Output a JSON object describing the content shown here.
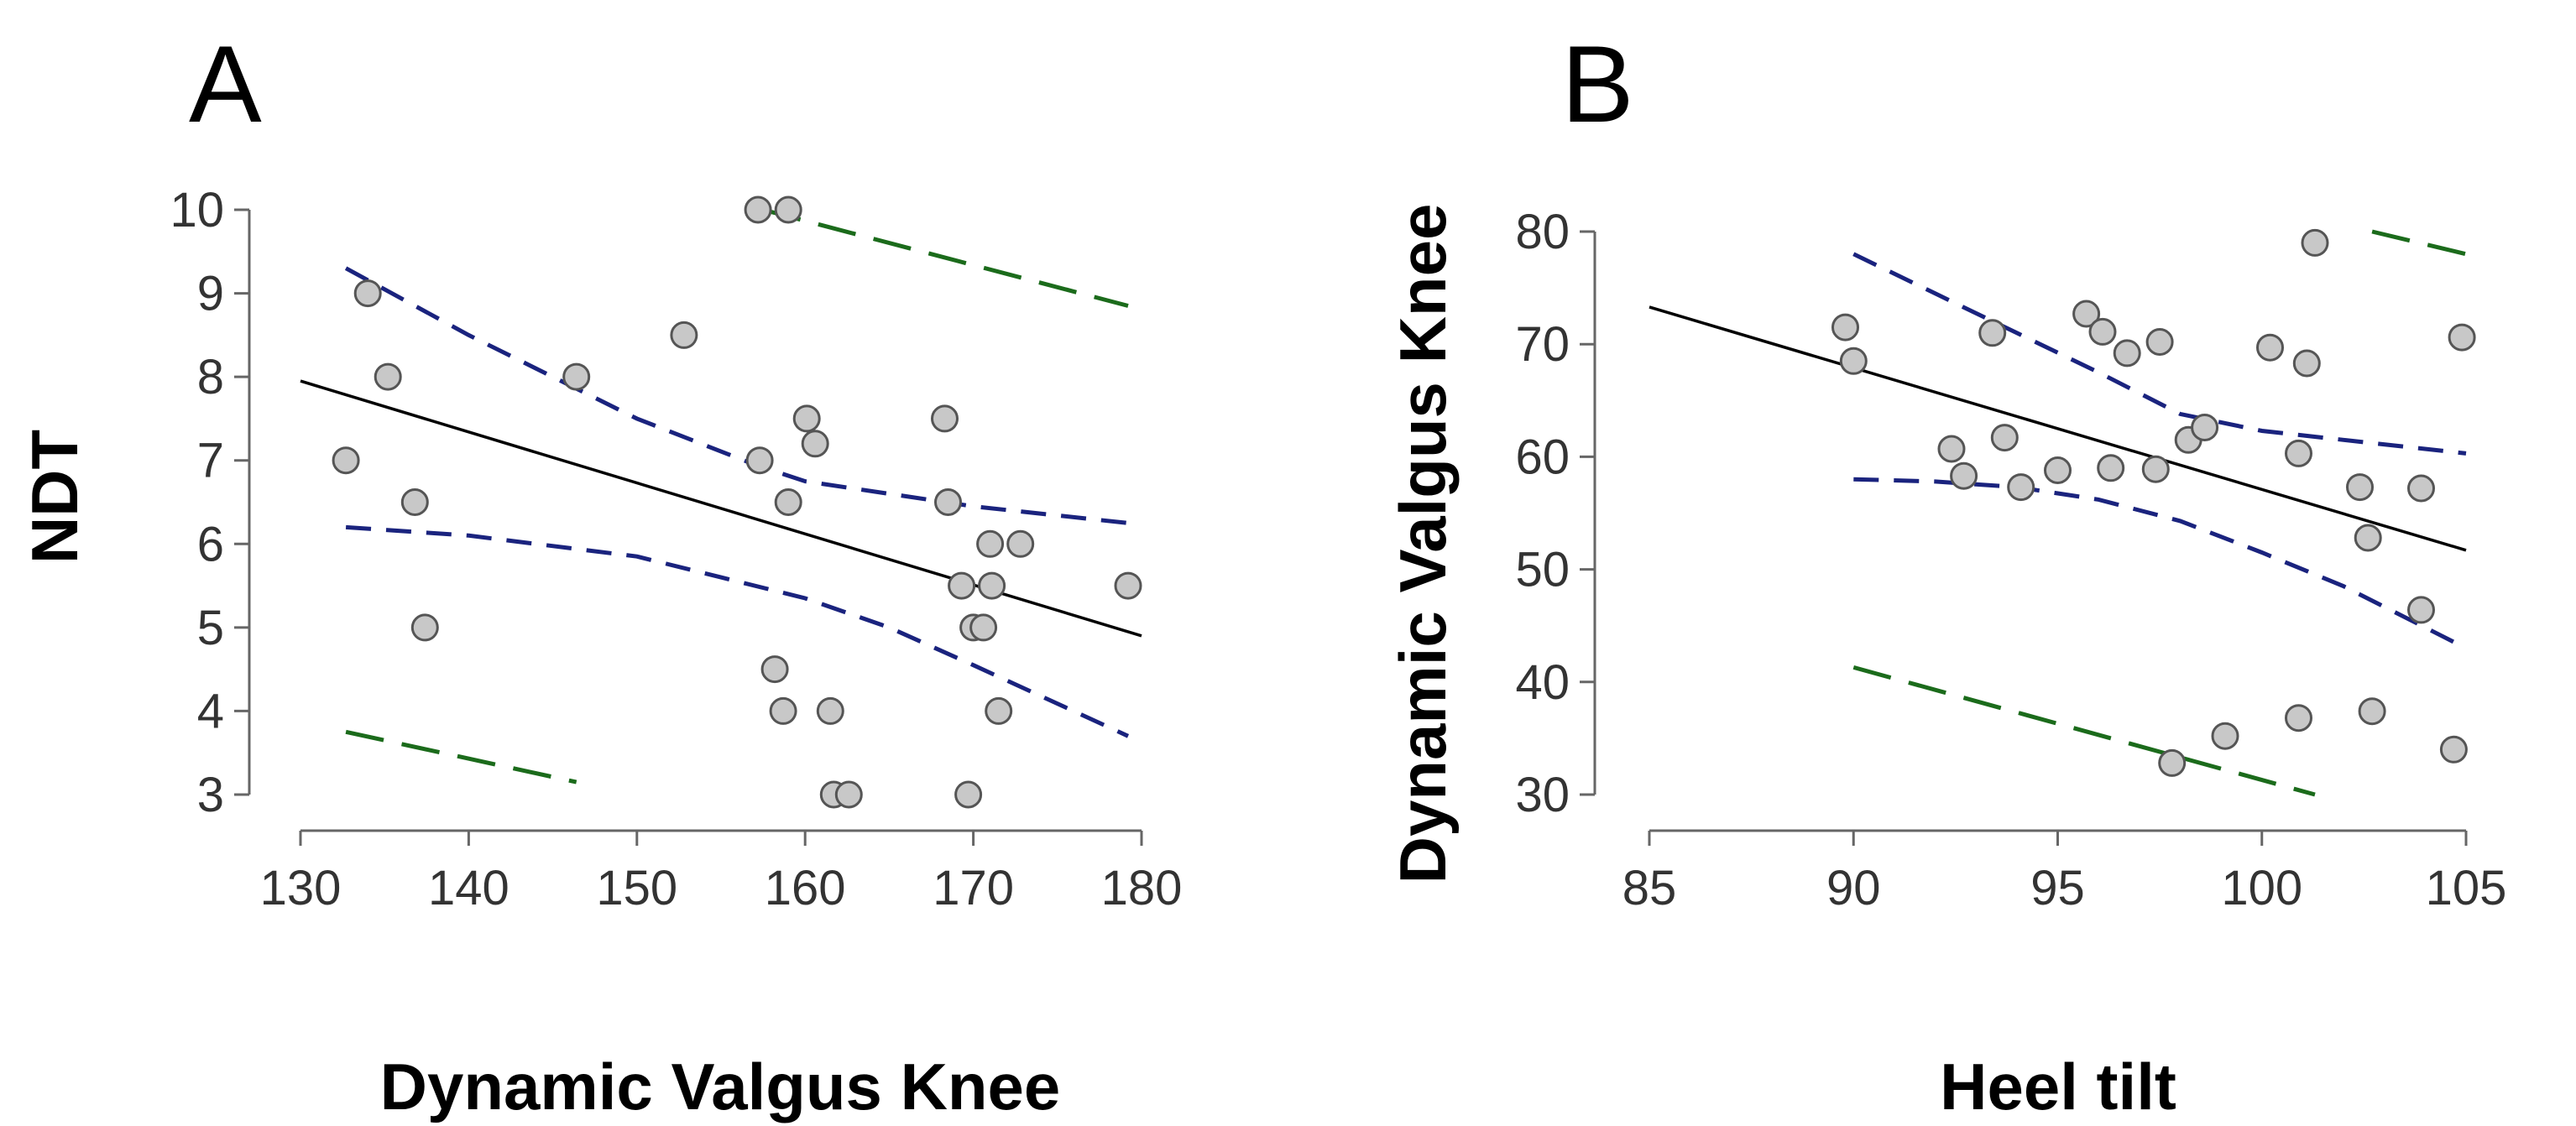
{
  "chart_data": [
    {
      "id": "A",
      "type": "scatter",
      "panel_label": "A",
      "xlabel": "Dynamic Valgus Knee",
      "ylabel": "NDT",
      "xlim": [
        130,
        180
      ],
      "ylim": [
        3,
        10
      ],
      "xticks": [
        130,
        140,
        150,
        160,
        170,
        180
      ],
      "yticks": [
        3,
        4,
        5,
        6,
        7,
        8,
        9,
        10
      ],
      "grid": false,
      "colors": {
        "points": "#c8c8c8",
        "fit": "#000000",
        "confidence": "#1a237e",
        "prediction": "#1b6b1b"
      },
      "points": [
        [
          132.7,
          7
        ],
        [
          134,
          9
        ],
        [
          135.2,
          8
        ],
        [
          136.8,
          6.5
        ],
        [
          137.4,
          5
        ],
        [
          146.4,
          8
        ],
        [
          152.8,
          8.5
        ],
        [
          157.2,
          10
        ],
        [
          157.3,
          7
        ],
        [
          158.2,
          4.5
        ],
        [
          158.7,
          4
        ],
        [
          159,
          10
        ],
        [
          159,
          6.5
        ],
        [
          160.1,
          7.5
        ],
        [
          160.6,
          7.2
        ],
        [
          161.5,
          4
        ],
        [
          161.7,
          3
        ],
        [
          162.6,
          3
        ],
        [
          168.3,
          7.5
        ],
        [
          168.5,
          6.5
        ],
        [
          169.3,
          5.5
        ],
        [
          169.7,
          3
        ],
        [
          170,
          5
        ],
        [
          170.6,
          5
        ],
        [
          171,
          6
        ],
        [
          171.1,
          5.5
        ],
        [
          171.5,
          4
        ],
        [
          172.8,
          6
        ],
        [
          179.2,
          5.5
        ]
      ],
      "fit": [
        [
          130,
          7.95
        ],
        [
          180,
          4.9
        ]
      ],
      "confidence_upper": [
        [
          132.7,
          9.3
        ],
        [
          140,
          8.5
        ],
        [
          150,
          7.5
        ],
        [
          157,
          6.95
        ],
        [
          160,
          6.75
        ],
        [
          165,
          6.6
        ],
        [
          170,
          6.45
        ],
        [
          179.2,
          6.25
        ]
      ],
      "confidence_lower": [
        [
          132.7,
          6.2
        ],
        [
          140,
          6.1
        ],
        [
          150,
          5.85
        ],
        [
          155,
          5.6
        ],
        [
          160,
          5.35
        ],
        [
          165,
          5.0
        ],
        [
          170,
          4.55
        ],
        [
          179.2,
          3.7
        ]
      ],
      "prediction_upper": [
        [
          157.5,
          10
        ],
        [
          179.2,
          8.85
        ]
      ],
      "prediction_lower": [
        [
          132.7,
          3.75
        ],
        [
          146.4,
          3.15
        ]
      ]
    },
    {
      "id": "B",
      "type": "scatter",
      "panel_label": "B",
      "xlabel": "Heel tilt",
      "ylabel": "Dynamic Valgus Knee",
      "xlim": [
        85,
        105
      ],
      "ylim": [
        30,
        80
      ],
      "xticks": [
        85,
        90,
        95,
        100,
        105
      ],
      "yticks": [
        30,
        40,
        50,
        60,
        70,
        80
      ],
      "grid": false,
      "colors": {
        "points": "#c8c8c8",
        "fit": "#000000",
        "confidence": "#1a237e",
        "prediction": "#1b6b1b"
      },
      "points": [
        [
          89.8,
          71.5
        ],
        [
          90,
          68.5
        ],
        [
          92.4,
          60.7
        ],
        [
          92.7,
          58.3
        ],
        [
          93.4,
          71
        ],
        [
          93.7,
          61.7
        ],
        [
          94.1,
          57.3
        ],
        [
          95,
          58.8
        ],
        [
          95.7,
          72.7
        ],
        [
          96.1,
          71.1
        ],
        [
          96.3,
          59
        ],
        [
          96.7,
          69.2
        ],
        [
          97.4,
          58.9
        ],
        [
          97.5,
          70.2
        ],
        [
          97.8,
          32.8
        ],
        [
          98.2,
          61.5
        ],
        [
          98.6,
          62.6
        ],
        [
          99.1,
          35.2
        ],
        [
          100.2,
          69.7
        ],
        [
          100.9,
          60.3
        ],
        [
          100.9,
          36.8
        ],
        [
          101.1,
          68.3
        ],
        [
          101.3,
          79
        ],
        [
          102.4,
          57.3
        ],
        [
          102.6,
          52.8
        ],
        [
          102.7,
          37.4
        ],
        [
          103.9,
          57.2
        ],
        [
          103.9,
          46.4
        ],
        [
          104.7,
          34
        ],
        [
          104.9,
          70.6
        ]
      ],
      "fit": [
        [
          85,
          73.3
        ],
        [
          105,
          51.7
        ]
      ],
      "confidence_upper": [
        [
          90,
          78
        ],
        [
          92,
          74.5
        ],
        [
          94,
          71
        ],
        [
          96,
          67.5
        ],
        [
          98,
          63.8
        ],
        [
          100,
          62.3
        ],
        [
          102,
          61.5
        ],
        [
          105,
          60.3
        ]
      ],
      "confidence_lower": [
        [
          90,
          58
        ],
        [
          92,
          57.8
        ],
        [
          94,
          57.3
        ],
        [
          96,
          56.2
        ],
        [
          98,
          54.3
        ],
        [
          100,
          51.5
        ],
        [
          102,
          48.5
        ],
        [
          105,
          43
        ]
      ],
      "prediction_upper": [
        [
          102.7,
          80
        ],
        [
          105,
          78
        ]
      ],
      "prediction_lower": [
        [
          90,
          41.3
        ],
        [
          101.3,
          30
        ]
      ]
    }
  ]
}
